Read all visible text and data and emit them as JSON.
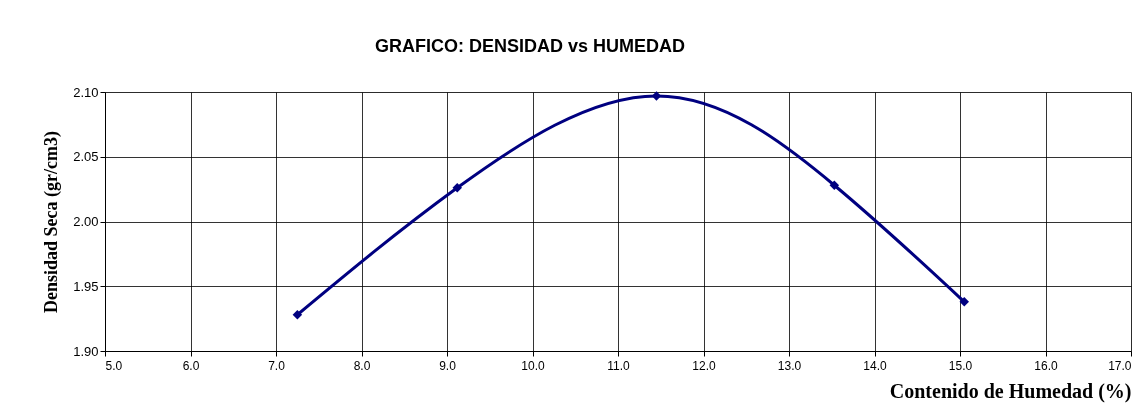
{
  "chart_data": {
    "type": "line",
    "title": "GRAFICO: DENSIDAD vs HUMEDAD",
    "xlabel": "Contenido de Humedad (%)",
    "ylabel": "Densidad Seca (gr/cm3)",
    "x": [
      7.25,
      9.12,
      11.45,
      13.53,
      15.05
    ],
    "series": [
      {
        "color": "#000080",
        "values": [
          1.928,
          2.026,
          2.097,
          2.028,
          1.938
        ]
      }
    ],
    "xlim": [
      5,
      17
    ],
    "xticks": [
      {
        "value": 5,
        "label": "5.0"
      },
      {
        "value": 6,
        "label": "6.0"
      },
      {
        "value": 7,
        "label": "7.0"
      },
      {
        "value": 8,
        "label": "8.0"
      },
      {
        "value": 9,
        "label": "9.0"
      },
      {
        "value": 10,
        "label": "10.0"
      },
      {
        "value": 11,
        "label": "11.0"
      },
      {
        "value": 12,
        "label": "12.0"
      },
      {
        "value": 13,
        "label": "13.0"
      },
      {
        "value": 14,
        "label": "14.0"
      },
      {
        "value": 15,
        "label": "15.0"
      },
      {
        "value": 16,
        "label": "16.0"
      },
      {
        "value": 17,
        "label": "17.0"
      }
    ],
    "ylim": [
      1.9,
      2.1
    ],
    "yticks": [
      {
        "value": 1.9,
        "label": "1.90"
      },
      {
        "value": 1.95,
        "label": "1.95"
      },
      {
        "value": 2.0,
        "label": "2.00"
      },
      {
        "value": 2.05,
        "label": "2.05"
      },
      {
        "value": 2.1,
        "label": "2.10"
      }
    ],
    "grid": true,
    "marker": "diamond",
    "line_style": "solid"
  }
}
